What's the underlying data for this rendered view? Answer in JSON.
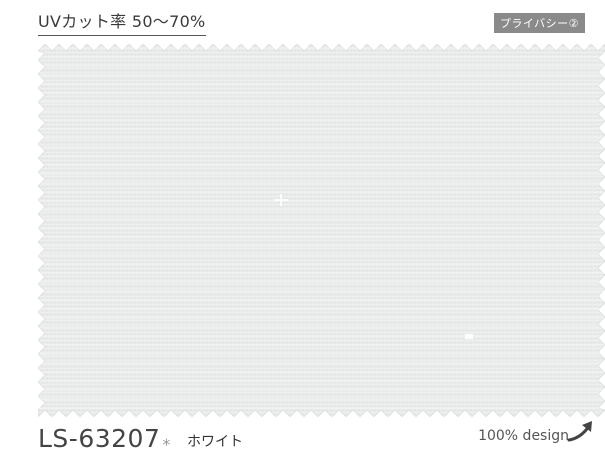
{
  "uv_cut_label": "UVカット率  50〜70%",
  "privacy_badge": "プライバシー②",
  "product": {
    "code": "LS-63207",
    "asterisk": "*",
    "color_name": "ホワイト"
  },
  "design_label": "100% design",
  "icons": {
    "arrow": "curved-arrow-icon"
  },
  "colors": {
    "swatch": "#e8e9e9",
    "badge_bg": "#8a8a8a"
  }
}
